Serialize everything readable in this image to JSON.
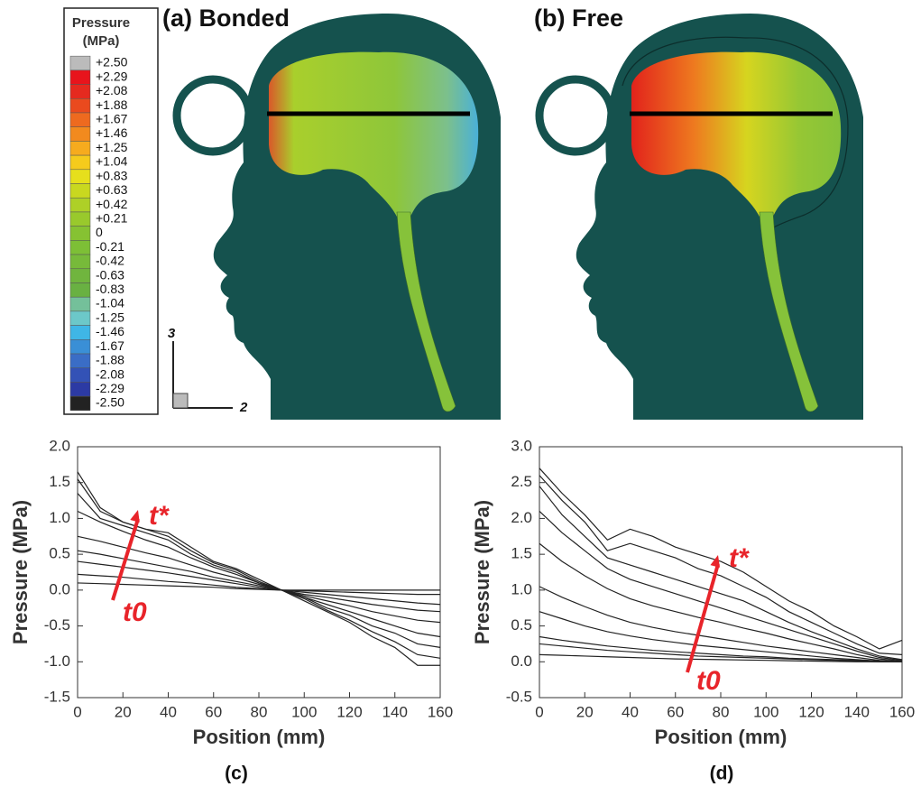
{
  "panels": [
    "(a) Bonded",
    "(b) Free",
    "(c)",
    "(d)"
  ],
  "legend": {
    "title": [
      "Pressure",
      "(MPa)"
    ],
    "labels": [
      "+2.50",
      "+2.29",
      "+2.08",
      "+1.88",
      "+1.67",
      "+1.46",
      "+1.25",
      "+1.04",
      "+0.83",
      "+0.63",
      "+0.42",
      "+0.21",
      "0",
      "-0.21",
      "-0.42",
      "-0.63",
      "-0.83",
      "-1.04",
      "-1.25",
      "-1.46",
      "-1.67",
      "-1.88",
      "-2.08",
      "-2.29",
      "-2.50"
    ],
    "colors": [
      "#bbbbbb",
      "#e8141c",
      "#e52a1f",
      "#ea4a1e",
      "#ee6a1f",
      "#f28a1e",
      "#f6ab1e",
      "#f5cb1c",
      "#e6df1c",
      "#c9d81f",
      "#aed027",
      "#99c92c",
      "#86c232",
      "#7dbf36",
      "#77ba3a",
      "#70b53e",
      "#69b142",
      "#74c09a",
      "#6cc8c9",
      "#3fb6e6",
      "#3a8fd6",
      "#3a6dc6",
      "#3352b6",
      "#2c3aa4",
      "#222222"
    ]
  },
  "axes_triad": [
    "3",
    "2"
  ],
  "chart_data": [
    {
      "type": "line",
      "xlabel": "Position (mm)",
      "ylabel": "Pressure (MPa)",
      "color": "#222222",
      "annotations": [
        "t*",
        "t0"
      ],
      "xlim": [
        0,
        160
      ],
      "xticks": [
        0,
        20,
        40,
        60,
        80,
        100,
        120,
        140,
        160
      ],
      "ylim": [
        -1.5,
        2
      ],
      "yticks": [
        {
          "value": 2,
          "label": "2.0"
        },
        1.5,
        {
          "value": 1,
          "label": "1.0"
        },
        0.5,
        {
          "value": 0,
          "label": "0.0"
        },
        -0.5,
        {
          "value": -1,
          "label": "-1.0"
        },
        -1.5
      ],
      "x": [
        0,
        10,
        20,
        30,
        40,
        50,
        60,
        70,
        80,
        90,
        100,
        110,
        120,
        130,
        140,
        150,
        160
      ],
      "series": [
        {
          "values": [
            1.65,
            1.15,
            0.95,
            0.85,
            0.8,
            0.6,
            0.4,
            0.3,
            0.15,
            0,
            -0.15,
            -0.3,
            -0.45,
            -0.65,
            -0.8,
            -1.05,
            -1.05
          ]
        },
        {
          "values": [
            1.55,
            1.1,
            0.95,
            0.85,
            0.75,
            0.55,
            0.38,
            0.28,
            0.12,
            0,
            -0.12,
            -0.28,
            -0.42,
            -0.58,
            -0.72,
            -0.9,
            -0.95
          ]
        },
        {
          "values": [
            1.35,
            1.0,
            0.9,
            0.8,
            0.7,
            0.5,
            0.35,
            0.25,
            0.1,
            0,
            -0.1,
            -0.25,
            -0.35,
            -0.5,
            -0.6,
            -0.75,
            -0.8
          ]
        },
        {
          "values": [
            1.1,
            0.95,
            0.82,
            0.7,
            0.6,
            0.45,
            0.32,
            0.22,
            0.1,
            0,
            -0.1,
            -0.2,
            -0.3,
            -0.4,
            -0.5,
            -0.6,
            -0.65
          ]
        },
        {
          "values": [
            0.75,
            0.68,
            0.6,
            0.52,
            0.45,
            0.35,
            0.25,
            0.17,
            0.08,
            0,
            -0.08,
            -0.15,
            -0.22,
            -0.3,
            -0.36,
            -0.42,
            -0.45
          ]
        },
        {
          "values": [
            0.55,
            0.5,
            0.44,
            0.38,
            0.32,
            0.26,
            0.18,
            0.12,
            0.06,
            0,
            -0.06,
            -0.1,
            -0.15,
            -0.2,
            -0.24,
            -0.28,
            -0.3
          ]
        },
        {
          "values": [
            0.4,
            0.36,
            0.32,
            0.28,
            0.24,
            0.19,
            0.14,
            0.09,
            0.04,
            0,
            -0.03,
            -0.06,
            -0.09,
            -0.12,
            -0.15,
            -0.18,
            -0.2
          ]
        },
        {
          "values": [
            0.22,
            0.2,
            0.18,
            0.15,
            0.12,
            0.1,
            0.07,
            0.04,
            0.02,
            0,
            -0.01,
            -0.02,
            -0.03,
            -0.04,
            -0.05,
            -0.06,
            -0.06
          ]
        },
        {
          "values": [
            0.1,
            0.09,
            0.08,
            0.07,
            0.06,
            0.05,
            0.04,
            0.02,
            0.01,
            0,
            0,
            0,
            0,
            0,
            0,
            0,
            0
          ]
        }
      ]
    },
    {
      "type": "line",
      "xlabel": "Position (mm)",
      "ylabel": "Pressure (MPa)",
      "color": "#222222",
      "annotations": [
        "t*",
        "t0"
      ],
      "xlim": [
        0,
        160
      ],
      "xticks": [
        0,
        20,
        40,
        60,
        80,
        100,
        120,
        140,
        160
      ],
      "ylim": [
        -0.5,
        3
      ],
      "yticks": [
        {
          "value": 3,
          "label": "3.0"
        },
        2.5,
        {
          "value": 2,
          "label": "2.0"
        },
        1.5,
        {
          "value": 1,
          "label": "1.0"
        },
        0.5,
        {
          "value": 0,
          "label": "0.0"
        },
        -0.5
      ],
      "x": [
        0,
        10,
        20,
        30,
        40,
        50,
        60,
        70,
        80,
        90,
        100,
        110,
        120,
        130,
        140,
        150,
        160
      ],
      "series": [
        {
          "values": [
            2.7,
            2.35,
            2.05,
            1.7,
            1.85,
            1.75,
            1.6,
            1.5,
            1.4,
            1.25,
            1.05,
            0.85,
            0.7,
            0.5,
            0.35,
            0.18,
            0.3
          ]
        },
        {
          "values": [
            2.6,
            2.25,
            1.95,
            1.55,
            1.65,
            1.55,
            1.45,
            1.3,
            1.2,
            1.05,
            0.9,
            0.7,
            0.55,
            0.4,
            0.25,
            0.12,
            0.1
          ]
        },
        {
          "values": [
            2.45,
            2.05,
            1.75,
            1.45,
            1.35,
            1.25,
            1.15,
            1.05,
            0.95,
            0.85,
            0.7,
            0.55,
            0.42,
            0.3,
            0.18,
            0.08,
            0.03
          ]
        },
        {
          "values": [
            2.1,
            1.8,
            1.55,
            1.3,
            1.15,
            1.05,
            0.95,
            0.85,
            0.75,
            0.65,
            0.55,
            0.45,
            0.35,
            0.25,
            0.15,
            0.06,
            0.02
          ]
        },
        {
          "values": [
            1.65,
            1.4,
            1.2,
            1.02,
            0.88,
            0.78,
            0.7,
            0.62,
            0.55,
            0.47,
            0.4,
            0.32,
            0.25,
            0.18,
            0.1,
            0.04,
            0.01
          ]
        },
        {
          "values": [
            1.05,
            0.9,
            0.77,
            0.65,
            0.55,
            0.48,
            0.42,
            0.37,
            0.32,
            0.27,
            0.22,
            0.18,
            0.14,
            0.1,
            0.06,
            0.02,
            0
          ]
        },
        {
          "values": [
            0.7,
            0.6,
            0.5,
            0.42,
            0.36,
            0.31,
            0.27,
            0.23,
            0.2,
            0.17,
            0.14,
            0.11,
            0.08,
            0.05,
            0.03,
            0.01,
            0
          ]
        },
        {
          "values": [
            0.35,
            0.3,
            0.26,
            0.22,
            0.19,
            0.16,
            0.14,
            0.12,
            0.1,
            0.08,
            0.07,
            0.05,
            0.04,
            0.03,
            0.02,
            0.01,
            0
          ]
        },
        {
          "values": [
            0.25,
            0.22,
            0.19,
            0.16,
            0.14,
            0.12,
            0.1,
            0.08,
            0.07,
            0.06,
            0.05,
            0.04,
            0.03,
            0.02,
            0.01,
            0,
            0
          ]
        },
        {
          "values": [
            0.1,
            0.09,
            0.08,
            0.07,
            0.06,
            0.05,
            0.04,
            0.035,
            0.03,
            0.025,
            0.02,
            0.015,
            0.01,
            0.005,
            0,
            0,
            0
          ]
        }
      ]
    }
  ]
}
